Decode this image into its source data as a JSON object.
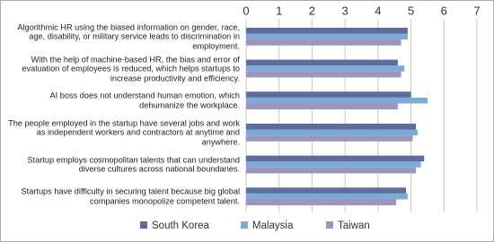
{
  "chart_data": {
    "type": "bar",
    "orientation": "horizontal",
    "categories": [
      "Algorithmic HR using the biased information on gender, race, age, disability, or military service leads to discrimination in employment.",
      "With the help of machine-based HR, the bias and error of evaluation of employees is reduced, which helps startups to increase productivity and efficiency.",
      "AI boss does not understand human emotion, which dehumanize the workplace.",
      "The people employed in the startup have several jobs and work as independent workers and contractors at anytime and anywhere.",
      "Startup employs cosmopolitan talents that can understand diverse cultures across national boundaries.",
      "Startups have difficulty in securing talent because big global companies monopolize competent talent."
    ],
    "series": [
      {
        "name": "South Korea",
        "color": "#5d6d9c",
        "values": [
          4.9,
          4.6,
          5.0,
          5.15,
          5.4,
          4.85
        ]
      },
      {
        "name": "Malaysia",
        "color": "#7eaad6",
        "values": [
          4.9,
          4.8,
          5.5,
          5.2,
          5.3,
          4.9
        ]
      },
      {
        "name": "Taiwan",
        "color": "#9c95c0",
        "values": [
          4.7,
          4.7,
          4.6,
          5.05,
          5.15,
          4.55
        ]
      }
    ],
    "xlim": [
      0,
      7
    ],
    "xticks": [
      0,
      1,
      2,
      3,
      4,
      5,
      6,
      7
    ],
    "grid": true
  }
}
